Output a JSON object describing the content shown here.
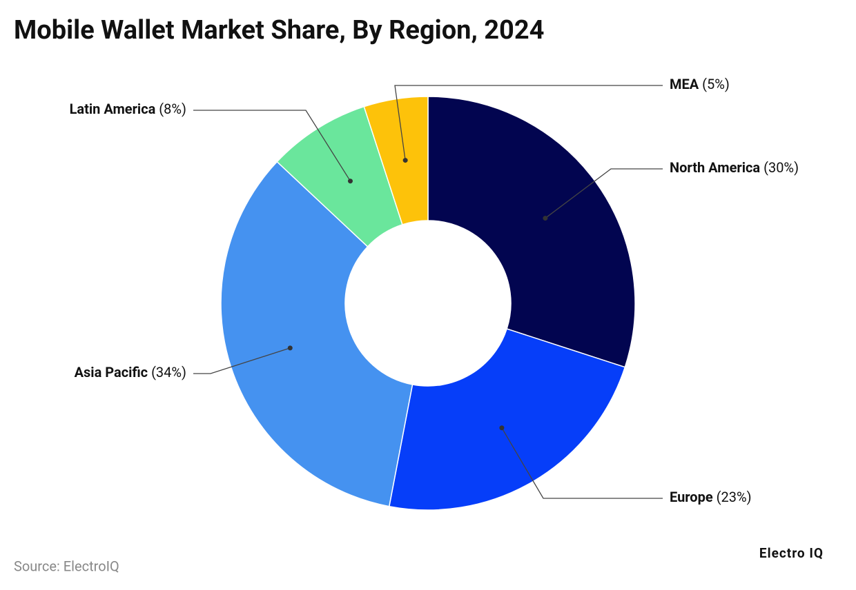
{
  "chart_data": {
    "type": "pie",
    "title": "Mobile Wallet Market Share, By Region, 2024",
    "categories": [
      "North America",
      "Europe",
      "Asia Pacific",
      "Latin America",
      "MEA"
    ],
    "values": [
      30,
      23,
      34,
      8,
      5
    ],
    "value_labels": [
      "(30%)",
      "(23%)",
      "(34%)",
      "(8%)",
      "(5%)"
    ],
    "colors": [
      "#020550",
      "#063ef9",
      "#4592f0",
      "#6ae69c",
      "#fdc20a"
    ],
    "source": "Source: ElectroIQ",
    "brand": "Electro IQ"
  }
}
